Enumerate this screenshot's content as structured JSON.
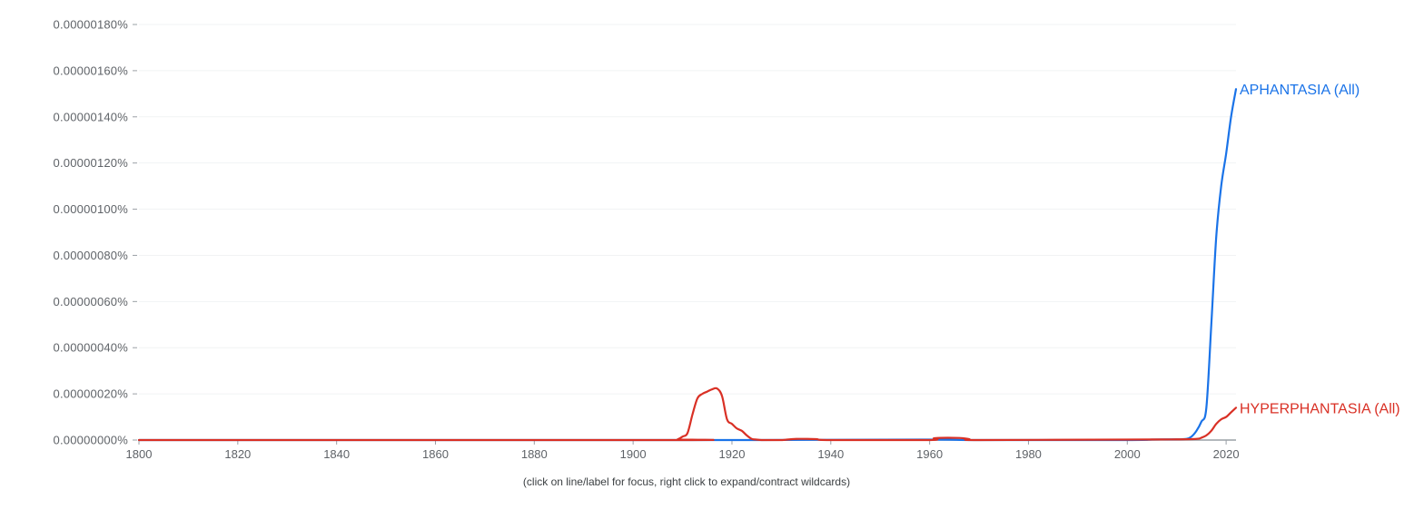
{
  "chart_data": {
    "type": "line",
    "title": "",
    "xlabel": "",
    "ylabel": "",
    "xlim": [
      1800,
      2022
    ],
    "ylim": [
      0,
      1.8e-06
    ],
    "y_ticks": [
      0,
      2e-07,
      4e-07,
      6e-07,
      8e-07,
      1e-06,
      1.2e-06,
      1.4e-06,
      1.6e-06,
      1.8e-06
    ],
    "y_tick_labels": [
      "0.00000000%",
      "0.00000020%",
      "0.00000040%",
      "0.00000060%",
      "0.00000080%",
      "0.00000100%",
      "0.00000120%",
      "0.00000140%",
      "0.00000160%",
      "0.00000180%"
    ],
    "x_ticks": [
      1800,
      1820,
      1840,
      1860,
      1880,
      1900,
      1920,
      1940,
      1960,
      1980,
      2000,
      2020
    ],
    "x_tick_labels": [
      "1800",
      "1820",
      "1840",
      "1860",
      "1880",
      "1900",
      "1920",
      "1940",
      "1960",
      "1980",
      "2000",
      "2020"
    ],
    "grid": true,
    "series": [
      {
        "name": "APHANTASIA (All)",
        "color": "#1a73e8",
        "x": [
          1800,
          1905,
          1910,
          1920,
          1925,
          1960,
          1970,
          2000,
          2005,
          2010,
          2012,
          2013,
          2014,
          2015,
          2016,
          2017,
          2018,
          2019,
          2020,
          2021,
          2022
        ],
        "y": [
          0,
          0,
          0,
          0,
          0,
          2e-09,
          0,
          0,
          2e-09,
          3e-09,
          5e-09,
          1.5e-08,
          4e-08,
          8e-08,
          1.4e-07,
          5e-07,
          8.8e-07,
          1.1e-06,
          1.24e-06,
          1.4e-06,
          1.52e-06
        ]
      },
      {
        "name": "HYPERPHANTASIA (All)",
        "color": "#d93025",
        "x": [
          1800,
          1908,
          1909,
          1910,
          1911,
          1912,
          1913,
          1914,
          1915,
          1916,
          1917,
          1918,
          1919,
          1920,
          1921,
          1922,
          1923,
          1924,
          1925,
          1926,
          1928,
          1930,
          1933,
          1937,
          1940,
          1960,
          1961,
          1966,
          1968,
          1970,
          2000,
          2010,
          2014,
          2015,
          2016,
          2017,
          2018,
          2019,
          2020,
          2021,
          2022
        ],
        "y": [
          0,
          0,
          3e-09,
          1.5e-08,
          3e-08,
          1.1e-07,
          1.8e-07,
          2e-07,
          2.1e-07,
          2.2e-07,
          2.23e-07,
          1.9e-07,
          9e-08,
          7e-08,
          5e-08,
          4e-08,
          2e-08,
          5e-09,
          2e-09,
          0,
          0,
          0,
          5e-09,
          4e-09,
          0,
          0,
          8e-09,
          9e-09,
          4e-09,
          0,
          2e-09,
          3e-09,
          5e-09,
          1e-08,
          2e-08,
          4e-08,
          7e-08,
          9e-08,
          1e-07,
          1.2e-07,
          1.4e-07
        ]
      }
    ],
    "legend": "line-end labels"
  },
  "footer": {
    "hint": "(click on line/label for focus, right click to expand/contract wildcards)"
  }
}
